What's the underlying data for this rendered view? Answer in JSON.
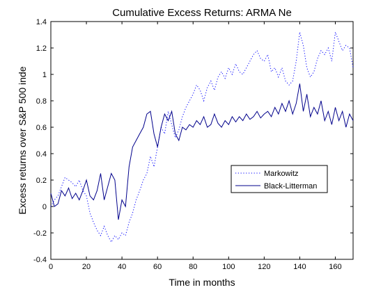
{
  "chart_data": {
    "type": "line",
    "title": "Cumulative Excess Returns: ARMA Ne",
    "xlabel": "Time in months",
    "ylabel": "Excess returns over S&P 500 inde",
    "xlim": [
      0,
      170
    ],
    "ylim": [
      -0.4,
      1.4
    ],
    "xticks": [
      0,
      20,
      40,
      60,
      80,
      100,
      120,
      140,
      160
    ],
    "yticks": [
      -0.4,
      -0.2,
      0,
      0.2,
      0.4,
      0.6,
      0.8,
      1,
      1.2,
      1.4
    ],
    "grid": false,
    "legend_position": "center-right",
    "series": [
      {
        "name": "Markowitz",
        "color": "#0000ff",
        "style": "dotted",
        "x": [
          0,
          2,
          4,
          6,
          8,
          10,
          12,
          14,
          16,
          18,
          20,
          22,
          24,
          26,
          28,
          30,
          32,
          34,
          36,
          38,
          40,
          42,
          44,
          46,
          48,
          50,
          52,
          54,
          56,
          58,
          60,
          62,
          64,
          66,
          68,
          70,
          72,
          74,
          76,
          78,
          80,
          82,
          84,
          86,
          88,
          90,
          92,
          94,
          96,
          98,
          100,
          102,
          104,
          106,
          108,
          110,
          112,
          114,
          116,
          118,
          120,
          122,
          124,
          126,
          128,
          130,
          132,
          134,
          136,
          138,
          140,
          142,
          144,
          146,
          148,
          150,
          152,
          154,
          156,
          158,
          160,
          162,
          164,
          166,
          168,
          170
        ],
        "values": [
          0.0,
          0.05,
          0.08,
          0.15,
          0.22,
          0.2,
          0.18,
          0.15,
          0.2,
          0.12,
          0.08,
          -0.05,
          -0.12,
          -0.18,
          -0.22,
          -0.15,
          -0.22,
          -0.27,
          -0.22,
          -0.25,
          -0.2,
          -0.22,
          -0.12,
          -0.05,
          0.05,
          0.12,
          0.2,
          0.25,
          0.38,
          0.3,
          0.45,
          0.6,
          0.55,
          0.72,
          0.62,
          0.52,
          0.58,
          0.68,
          0.75,
          0.8,
          0.85,
          0.92,
          0.88,
          0.8,
          0.9,
          0.95,
          0.88,
          0.98,
          1.02,
          0.97,
          1.05,
          1.0,
          1.08,
          1.02,
          1.0,
          1.05,
          1.1,
          1.15,
          1.18,
          1.12,
          1.1,
          1.15,
          1.02,
          1.05,
          0.98,
          1.05,
          0.95,
          0.92,
          0.95,
          1.1,
          1.32,
          1.22,
          1.05,
          0.98,
          1.02,
          1.12,
          1.18,
          1.15,
          1.2,
          1.1,
          1.32,
          1.25,
          1.18,
          1.22,
          1.2,
          1.05
        ]
      },
      {
        "name": "Black-Litterman",
        "color": "#00008b",
        "style": "solid",
        "x": [
          0,
          2,
          4,
          6,
          8,
          10,
          12,
          14,
          16,
          18,
          20,
          22,
          24,
          26,
          28,
          30,
          32,
          34,
          36,
          38,
          40,
          42,
          44,
          46,
          48,
          50,
          52,
          54,
          56,
          58,
          60,
          62,
          64,
          66,
          68,
          70,
          72,
          74,
          76,
          78,
          80,
          82,
          84,
          86,
          88,
          90,
          92,
          94,
          96,
          98,
          100,
          102,
          104,
          106,
          108,
          110,
          112,
          114,
          116,
          118,
          120,
          122,
          124,
          126,
          128,
          130,
          132,
          134,
          136,
          138,
          140,
          142,
          144,
          146,
          148,
          150,
          152,
          154,
          156,
          158,
          160,
          162,
          164,
          166,
          168,
          170
        ],
        "values": [
          0.1,
          0.0,
          0.02,
          0.12,
          0.08,
          0.14,
          0.06,
          0.1,
          0.05,
          0.12,
          0.2,
          0.08,
          0.05,
          0.12,
          0.25,
          0.05,
          0.15,
          0.25,
          0.2,
          -0.1,
          0.05,
          0.0,
          0.3,
          0.45,
          0.5,
          0.55,
          0.6,
          0.7,
          0.72,
          0.55,
          0.45,
          0.6,
          0.7,
          0.65,
          0.72,
          0.55,
          0.5,
          0.6,
          0.58,
          0.62,
          0.6,
          0.65,
          0.62,
          0.68,
          0.6,
          0.62,
          0.7,
          0.63,
          0.6,
          0.65,
          0.62,
          0.68,
          0.64,
          0.68,
          0.65,
          0.7,
          0.66,
          0.68,
          0.72,
          0.67,
          0.7,
          0.72,
          0.68,
          0.75,
          0.7,
          0.78,
          0.72,
          0.8,
          0.7,
          0.78,
          0.93,
          0.72,
          0.85,
          0.68,
          0.75,
          0.7,
          0.8,
          0.65,
          0.72,
          0.62,
          0.75,
          0.65,
          0.72,
          0.6,
          0.7,
          0.65
        ]
      }
    ]
  }
}
